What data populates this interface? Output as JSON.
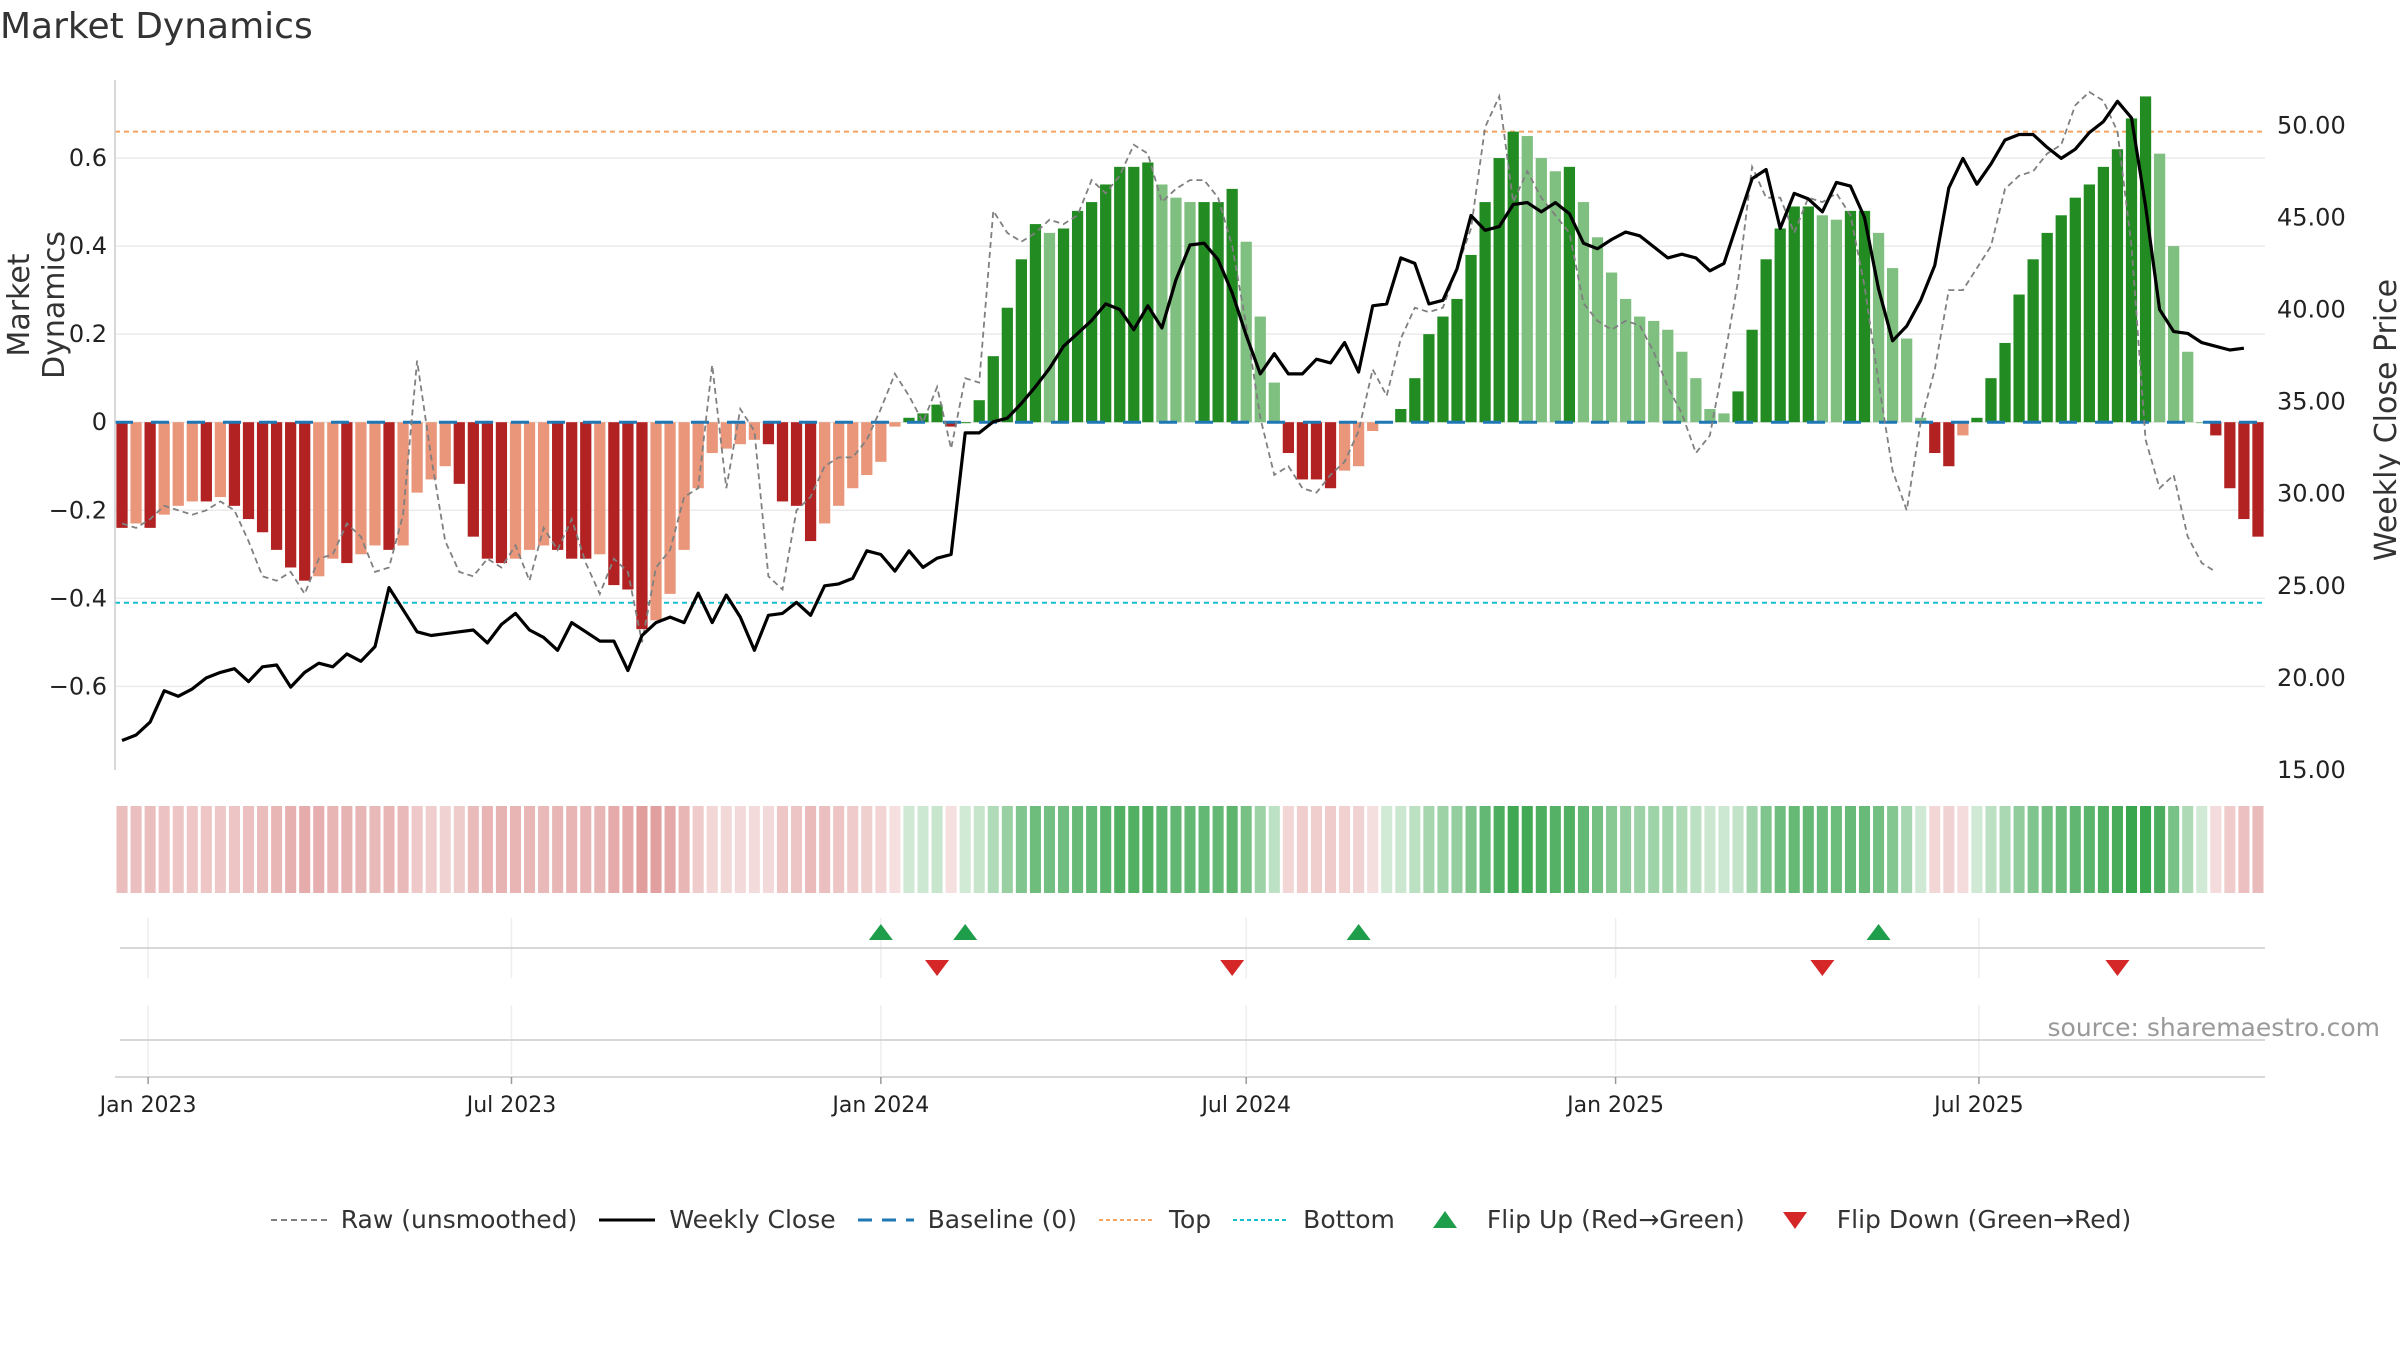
{
  "title": "Market Dynamics",
  "source": "source: sharemaestro.com",
  "legend": [
    {
      "label": "Raw (unsmoothed)",
      "icon": "dashed-gray-line"
    },
    {
      "label": "Weekly Close",
      "icon": "solid-black-line"
    },
    {
      "label": "Baseline (0)",
      "icon": "dashed-blue-line"
    },
    {
      "label": "Top",
      "icon": "dotted-orange-line"
    },
    {
      "label": "Bottom",
      "icon": "dotted-cyan-line"
    },
    {
      "label": "Flip Up (Red→Green)",
      "icon": "green-up-triangle"
    },
    {
      "label": "Flip Down (Green→Red)",
      "icon": "red-down-triangle"
    }
  ],
  "colors": {
    "strong_green": "#228B22",
    "light_green": "#7fbf7f",
    "strong_red": "#b22222",
    "light_red": "#e9967a",
    "top_line": "#f4a460",
    "bottom_line": "#17becf",
    "baseline": "#1f77b4",
    "close_line": "#000000",
    "raw_line": "#808080",
    "flip_up": "#1e9e4a",
    "flip_down": "#d62728"
  },
  "chart_data": {
    "type": "bar",
    "title": "Market Dynamics",
    "ylabel_left": "Market Dynamics",
    "ylabel_right": "Weekly Close Price",
    "ylim_left": [
      -0.79,
      0.8
    ],
    "ylim_right": [
      15.0,
      53.0
    ],
    "yticks_left": [
      "0.6",
      "0.4",
      "0.2",
      "0",
      "−0.2",
      "−0.4",
      "−0.6"
    ],
    "yticks_left_values": [
      0.6,
      0.4,
      0.2,
      0,
      -0.2,
      -0.4,
      -0.6
    ],
    "yticks_right": [
      "50.00",
      "45.00",
      "40.00",
      "35.00",
      "30.00",
      "25.00",
      "20.00",
      "15.00"
    ],
    "yticks_right_values": [
      50,
      45,
      40,
      35,
      30,
      25,
      20,
      15
    ],
    "x_start": "2022-12-19",
    "x_ticks": [
      {
        "label": "Jan 2023",
        "date": "2023-01-01"
      },
      {
        "label": "Jul 2023",
        "date": "2023-07-01"
      },
      {
        "label": "Jan 2024",
        "date": "2024-01-01"
      },
      {
        "label": "Jul 2024",
        "date": "2024-07-01"
      },
      {
        "label": "Jan 2025",
        "date": "2025-01-01"
      },
      {
        "label": "Jul 2025",
        "date": "2025-07-01"
      }
    ],
    "top_level": 0.66,
    "bottom_level": -0.41,
    "baseline": 0,
    "series": [
      {
        "name": "Market Dynamics",
        "values": [
          -0.24,
          -0.23,
          -0.24,
          -0.21,
          -0.19,
          -0.18,
          -0.18,
          -0.17,
          -0.19,
          -0.22,
          -0.25,
          -0.29,
          -0.33,
          -0.36,
          -0.35,
          -0.31,
          -0.32,
          -0.3,
          -0.28,
          -0.29,
          -0.28,
          -0.16,
          -0.13,
          -0.1,
          -0.14,
          -0.26,
          -0.31,
          -0.32,
          -0.31,
          -0.29,
          -0.28,
          -0.29,
          -0.31,
          -0.31,
          -0.3,
          -0.37,
          -0.38,
          -0.47,
          -0.45,
          -0.39,
          -0.29,
          -0.15,
          -0.07,
          -0.06,
          -0.05,
          -0.04,
          -0.05,
          -0.18,
          -0.19,
          -0.27,
          -0.23,
          -0.19,
          -0.15,
          -0.12,
          -0.09,
          -0.01,
          0.01,
          0.02,
          0.04,
          -0.01,
          0.0,
          0.05,
          0.15,
          0.26,
          0.37,
          0.45,
          0.43,
          0.44,
          0.48,
          0.5,
          0.54,
          0.58,
          0.58,
          0.59,
          0.54,
          0.51,
          0.5,
          0.5,
          0.5,
          0.53,
          0.41,
          0.24,
          0.09,
          -0.07,
          -0.13,
          -0.13,
          -0.15,
          -0.11,
          -0.1,
          -0.02,
          0.0,
          0.03,
          0.1,
          0.2,
          0.24,
          0.28,
          0.38,
          0.5,
          0.6,
          0.66,
          0.65,
          0.6,
          0.57,
          0.58,
          0.5,
          0.42,
          0.34,
          0.28,
          0.24,
          0.23,
          0.21,
          0.16,
          0.1,
          0.03,
          0.02,
          0.07,
          0.21,
          0.37,
          0.44,
          0.49,
          0.49,
          0.47,
          0.46,
          0.48,
          0.48,
          0.43,
          0.35,
          0.19,
          0.01,
          -0.07,
          -0.1,
          -0.03,
          0.01,
          0.1,
          0.18,
          0.29,
          0.37,
          0.43,
          0.47,
          0.51,
          0.54,
          0.58,
          0.62,
          0.69,
          0.74,
          0.61,
          0.4,
          0.16,
          0.0,
          -0.03,
          -0.15,
          -0.22,
          -0.26
        ]
      },
      {
        "name": "Raw (unsmoothed)",
        "values": [
          -0.23,
          -0.24,
          -0.22,
          -0.19,
          -0.2,
          -0.21,
          -0.2,
          -0.18,
          -0.2,
          -0.27,
          -0.35,
          -0.36,
          -0.34,
          -0.39,
          -0.31,
          -0.3,
          -0.23,
          -0.26,
          -0.34,
          -0.33,
          -0.21,
          0.14,
          -0.08,
          -0.27,
          -0.34,
          -0.35,
          -0.31,
          -0.33,
          -0.28,
          -0.36,
          -0.24,
          -0.29,
          -0.22,
          -0.32,
          -0.39,
          -0.31,
          -0.34,
          -0.5,
          -0.33,
          -0.29,
          -0.17,
          -0.15,
          0.13,
          -0.15,
          0.03,
          -0.02,
          -0.35,
          -0.38,
          -0.2,
          -0.17,
          -0.1,
          -0.08,
          -0.08,
          -0.04,
          0.03,
          0.11,
          0.06,
          0.0,
          0.08,
          -0.06,
          0.1,
          0.09,
          0.48,
          0.43,
          0.41,
          0.43,
          0.46,
          0.45,
          0.47,
          0.55,
          0.52,
          0.56,
          0.63,
          0.61,
          0.5,
          0.53,
          0.55,
          0.55,
          0.51,
          0.4,
          0.22,
          0.01,
          -0.12,
          -0.1,
          -0.15,
          -0.16,
          -0.12,
          -0.09,
          -0.02,
          0.12,
          0.06,
          0.19,
          0.26,
          0.25,
          0.26,
          0.35,
          0.44,
          0.67,
          0.74,
          0.5,
          0.57,
          0.51,
          0.47,
          0.43,
          0.27,
          0.23,
          0.21,
          0.23,
          0.22,
          0.16,
          0.08,
          0.02,
          -0.07,
          -0.03,
          0.14,
          0.32,
          0.58,
          0.51,
          0.51,
          0.43,
          0.51,
          0.5,
          0.52,
          0.47,
          0.31,
          0.09,
          -0.11,
          -0.2,
          0.0,
          0.12,
          0.3,
          0.3,
          0.35,
          0.4,
          0.53,
          0.56,
          0.57,
          0.61,
          0.63,
          0.72,
          0.75,
          0.73,
          0.66,
          0.4,
          -0.04,
          -0.15,
          -0.12,
          -0.26,
          -0.32,
          -0.34
        ]
      },
      {
        "name": "Weekly Close",
        "values": [
          16.6,
          16.9,
          17.6,
          19.3,
          19.0,
          19.4,
          20.0,
          20.3,
          20.5,
          19.8,
          20.6,
          20.7,
          19.5,
          20.3,
          20.8,
          20.6,
          21.3,
          20.9,
          21.7,
          24.9,
          23.7,
          22.5,
          22.3,
          22.4,
          22.5,
          22.6,
          21.9,
          22.9,
          23.5,
          22.6,
          22.2,
          21.5,
          23.0,
          22.5,
          22.0,
          22.0,
          20.4,
          22.3,
          23.0,
          23.3,
          23.0,
          24.6,
          23.0,
          24.5,
          23.3,
          21.5,
          23.4,
          23.5,
          24.1,
          23.4,
          25.0,
          25.1,
          25.4,
          26.9,
          26.7,
          25.8,
          26.9,
          26.0,
          26.5,
          26.7,
          33.3,
          33.3,
          33.9,
          34.1,
          34.9,
          35.8,
          36.8,
          38.0,
          38.7,
          39.4,
          40.3,
          40.0,
          38.9,
          40.2,
          39.0,
          41.6,
          43.5,
          43.6,
          42.7,
          40.9,
          38.6,
          36.5,
          37.6,
          36.5,
          36.5,
          37.3,
          37.1,
          38.2,
          36.6,
          40.2,
          40.3,
          42.8,
          42.5,
          40.3,
          40.5,
          42.2,
          45.1,
          44.3,
          44.5,
          45.7,
          45.8,
          45.3,
          45.8,
          45.2,
          43.6,
          43.3,
          43.8,
          44.2,
          44.0,
          43.4,
          42.8,
          43.0,
          42.8,
          42.1,
          42.5,
          44.8,
          47.1,
          47.6,
          44.4,
          46.3,
          46.0,
          45.3,
          46.9,
          46.7,
          45.0,
          41.1,
          38.3,
          39.1,
          40.5,
          42.4,
          46.6,
          48.2,
          46.8,
          47.9,
          49.2,
          49.5,
          49.5,
          48.8,
          48.2,
          48.7,
          49.6,
          50.2,
          51.3,
          50.4,
          45.6,
          40.0,
          38.8,
          38.7,
          38.2,
          38.0,
          37.8,
          37.9
        ]
      }
    ],
    "flips_up": [
      "2024-01-01",
      "2024-02-12",
      "2024-08-26",
      "2025-05-12"
    ],
    "flips_down": [
      "2024-01-29",
      "2024-06-24",
      "2025-04-14",
      "2025-09-08"
    ],
    "grid": true,
    "legend_position": "bottom"
  }
}
